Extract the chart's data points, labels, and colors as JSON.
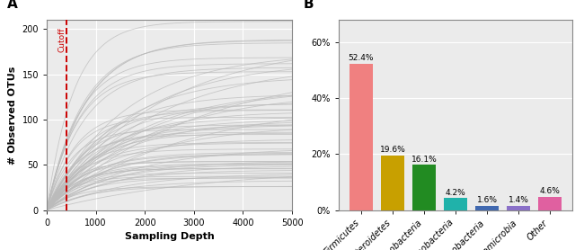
{
  "panel_A": {
    "title": "A",
    "xlabel": "Sampling Depth",
    "ylabel": "# Observed OTUs",
    "xlim": [
      0,
      5000
    ],
    "ylim": [
      0,
      210
    ],
    "xticks": [
      0,
      1000,
      2000,
      3000,
      4000,
      5000
    ],
    "yticks": [
      0,
      50,
      100,
      150,
      200
    ],
    "cutoff_x": 400,
    "cutoff_label": "Cutoff",
    "cutoff_color": "#cc0000",
    "num_curves": 65,
    "curve_color": "#bbbbbb",
    "curve_alpha": 0.75,
    "bg_color": "#ebebeb"
  },
  "panel_B": {
    "title": "B",
    "categories": [
      "Firmicutes",
      "Bacteroidetes",
      "Proteobacteria",
      "Actinobacteria",
      "Fusobacteria",
      "Verrucomicrobia",
      "Other"
    ],
    "values": [
      52.4,
      19.6,
      16.1,
      4.2,
      1.6,
      1.4,
      4.6
    ],
    "colors": [
      "#F08080",
      "#C8A000",
      "#228B22",
      "#20B2AA",
      "#4169B0",
      "#8A70C8",
      "#E060A0"
    ],
    "yticks": [
      0,
      20,
      40,
      60
    ],
    "yticklabels": [
      "0%",
      "20%",
      "40%",
      "60%"
    ],
    "ylim": [
      0,
      68
    ],
    "bg_color": "#ebebeb"
  }
}
